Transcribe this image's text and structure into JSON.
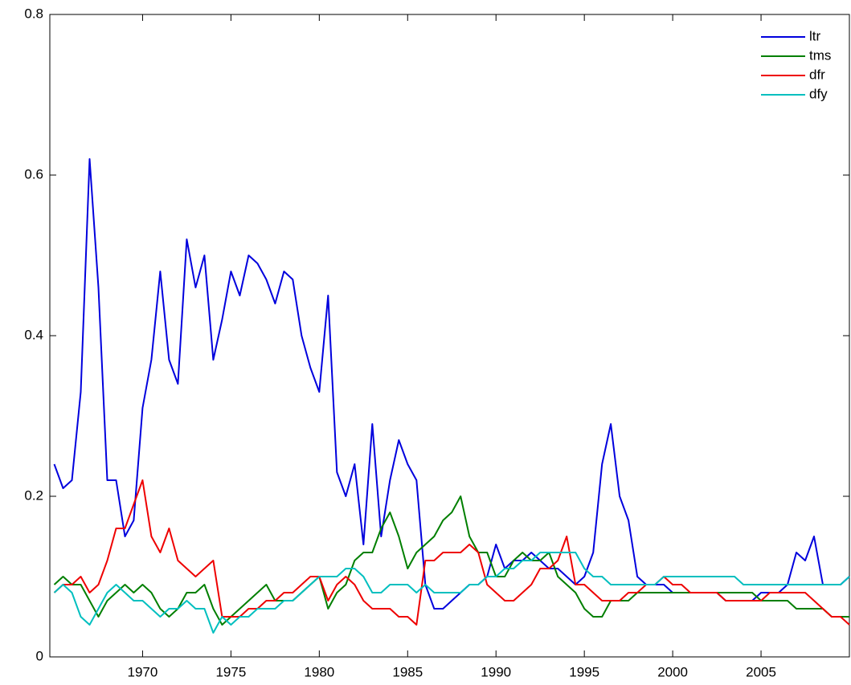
{
  "chart_data": {
    "type": "line",
    "x": [
      1965,
      1965.5,
      1966,
      1966.5,
      1967,
      1967.5,
      1968,
      1968.5,
      1969,
      1969.5,
      1970,
      1970.5,
      1971,
      1971.5,
      1972,
      1972.5,
      1973,
      1973.5,
      1974,
      1974.5,
      1975,
      1975.5,
      1976,
      1976.5,
      1977,
      1977.5,
      1978,
      1978.5,
      1979,
      1979.5,
      1980,
      1980.5,
      1981,
      1981.5,
      1982,
      1982.5,
      1983,
      1983.5,
      1984,
      1984.5,
      1985,
      1985.5,
      1986,
      1986.5,
      1987,
      1987.5,
      1988,
      1988.5,
      1989,
      1989.5,
      1990,
      1990.5,
      1991,
      1991.5,
      1992,
      1992.5,
      1993,
      1993.5,
      1994,
      1994.5,
      1995,
      1995.5,
      1996,
      1996.5,
      1997,
      1997.5,
      1998,
      1998.5,
      1999,
      1999.5,
      2000,
      2000.5,
      2001,
      2001.5,
      2002,
      2002.5,
      2003,
      2003.5,
      2004,
      2004.5,
      2005,
      2005.5,
      2006,
      2006.5,
      2007,
      2007.5,
      2008,
      2008.5,
      2009,
      2009.5,
      2010
    ],
    "series": [
      {
        "name": "ltr",
        "color": "#0000dd",
        "values": [
          0.24,
          0.21,
          0.22,
          0.33,
          0.62,
          0.46,
          0.22,
          0.22,
          0.15,
          0.17,
          0.31,
          0.37,
          0.48,
          0.37,
          0.34,
          0.52,
          0.46,
          0.5,
          0.37,
          0.42,
          0.48,
          0.45,
          0.5,
          0.49,
          0.47,
          0.44,
          0.48,
          0.47,
          0.4,
          0.36,
          0.33,
          0.45,
          0.23,
          0.2,
          0.24,
          0.14,
          0.29,
          0.15,
          0.22,
          0.27,
          0.24,
          0.22,
          0.09,
          0.06,
          0.06,
          0.07,
          0.08,
          0.09,
          0.09,
          0.1,
          0.14,
          0.11,
          0.12,
          0.12,
          0.13,
          0.12,
          0.11,
          0.11,
          0.1,
          0.09,
          0.1,
          0.13,
          0.24,
          0.29,
          0.2,
          0.17,
          0.1,
          0.09,
          0.09,
          0.09,
          0.08,
          0.08,
          0.08,
          0.08,
          0.08,
          0.08,
          0.07,
          0.07,
          0.07,
          0.07,
          0.08,
          0.08,
          0.08,
          0.09,
          0.13,
          0.12,
          0.15,
          0.09,
          0.09,
          0.09,
          0.1
        ]
      },
      {
        "name": "tms",
        "color": "#007f00",
        "values": [
          0.09,
          0.1,
          0.09,
          0.09,
          0.07,
          0.05,
          0.07,
          0.08,
          0.09,
          0.08,
          0.09,
          0.08,
          0.06,
          0.05,
          0.06,
          0.08,
          0.08,
          0.09,
          0.06,
          0.04,
          0.05,
          0.06,
          0.07,
          0.08,
          0.09,
          0.07,
          0.07,
          0.07,
          0.08,
          0.09,
          0.1,
          0.06,
          0.08,
          0.09,
          0.12,
          0.13,
          0.13,
          0.16,
          0.18,
          0.15,
          0.11,
          0.13,
          0.14,
          0.15,
          0.17,
          0.18,
          0.2,
          0.15,
          0.13,
          0.13,
          0.1,
          0.1,
          0.12,
          0.13,
          0.12,
          0.12,
          0.13,
          0.1,
          0.09,
          0.08,
          0.06,
          0.05,
          0.05,
          0.07,
          0.07,
          0.07,
          0.08,
          0.08,
          0.08,
          0.08,
          0.08,
          0.08,
          0.08,
          0.08,
          0.08,
          0.08,
          0.08,
          0.08,
          0.08,
          0.08,
          0.07,
          0.07,
          0.07,
          0.07,
          0.06,
          0.06,
          0.06,
          0.06,
          0.05,
          0.05,
          0.05
        ]
      },
      {
        "name": "dfr",
        "color": "#ee0000",
        "values": [
          0.08,
          0.09,
          0.09,
          0.1,
          0.08,
          0.09,
          0.12,
          0.16,
          0.16,
          0.19,
          0.22,
          0.15,
          0.13,
          0.16,
          0.12,
          0.11,
          0.1,
          0.11,
          0.12,
          0.05,
          0.05,
          0.05,
          0.06,
          0.06,
          0.07,
          0.07,
          0.08,
          0.08,
          0.09,
          0.1,
          0.1,
          0.07,
          0.09,
          0.1,
          0.09,
          0.07,
          0.06,
          0.06,
          0.06,
          0.05,
          0.05,
          0.04,
          0.12,
          0.12,
          0.13,
          0.13,
          0.13,
          0.14,
          0.13,
          0.09,
          0.08,
          0.07,
          0.07,
          0.08,
          0.09,
          0.11,
          0.11,
          0.12,
          0.15,
          0.09,
          0.09,
          0.08,
          0.07,
          0.07,
          0.07,
          0.08,
          0.08,
          0.09,
          0.09,
          0.1,
          0.09,
          0.09,
          0.08,
          0.08,
          0.08,
          0.08,
          0.07,
          0.07,
          0.07,
          0.07,
          0.07,
          0.08,
          0.08,
          0.08,
          0.08,
          0.08,
          0.07,
          0.06,
          0.05,
          0.05,
          0.04
        ]
      },
      {
        "name": "dfy",
        "color": "#00bfbf",
        "values": [
          0.08,
          0.09,
          0.08,
          0.05,
          0.04,
          0.06,
          0.08,
          0.09,
          0.08,
          0.07,
          0.07,
          0.06,
          0.05,
          0.06,
          0.06,
          0.07,
          0.06,
          0.06,
          0.03,
          0.05,
          0.04,
          0.05,
          0.05,
          0.06,
          0.06,
          0.06,
          0.07,
          0.07,
          0.08,
          0.09,
          0.1,
          0.1,
          0.1,
          0.11,
          0.11,
          0.1,
          0.08,
          0.08,
          0.09,
          0.09,
          0.09,
          0.08,
          0.09,
          0.08,
          0.08,
          0.08,
          0.08,
          0.09,
          0.09,
          0.1,
          0.1,
          0.11,
          0.11,
          0.12,
          0.12,
          0.13,
          0.13,
          0.13,
          0.13,
          0.13,
          0.11,
          0.1,
          0.1,
          0.09,
          0.09,
          0.09,
          0.09,
          0.09,
          0.09,
          0.1,
          0.1,
          0.1,
          0.1,
          0.1,
          0.1,
          0.1,
          0.1,
          0.1,
          0.09,
          0.09,
          0.09,
          0.09,
          0.09,
          0.09,
          0.09,
          0.09,
          0.09,
          0.09,
          0.09,
          0.09,
          0.1
        ]
      }
    ],
    "xlim": [
      1964.75,
      2010
    ],
    "xticks": [
      1970,
      1975,
      1980,
      1985,
      1990,
      1995,
      2000,
      2005
    ],
    "ylim": [
      0,
      0.8
    ],
    "yticks": [
      0,
      0.2,
      0.4,
      0.6,
      0.8
    ],
    "legend": "top-right"
  }
}
